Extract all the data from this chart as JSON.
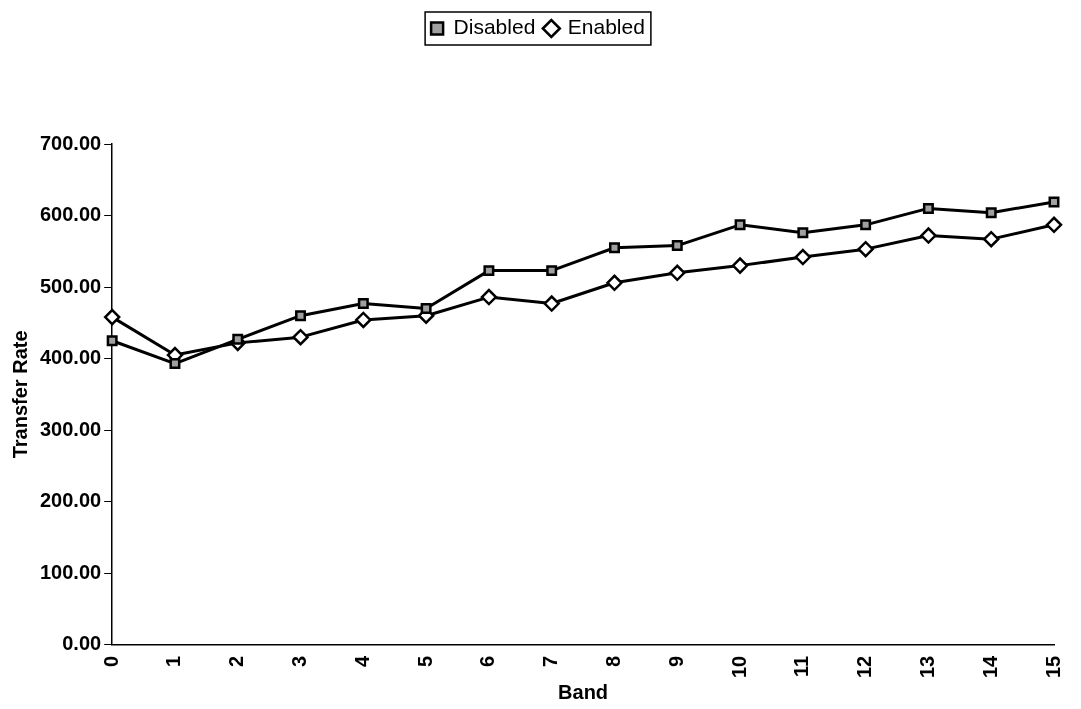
{
  "chart_data": {
    "type": "line",
    "xlabel": "Band",
    "ylabel": "Transfer Rate",
    "categories": [
      "0",
      "1",
      "2",
      "3",
      "4",
      "5",
      "6",
      "7",
      "8",
      "9",
      "10",
      "11",
      "12",
      "13",
      "14",
      "15"
    ],
    "series": [
      {
        "name": "Disabled",
        "color": "#000000",
        "marker": "square",
        "values": [
          425,
          393,
          427,
          460,
          477,
          470,
          523,
          523,
          555,
          558,
          587,
          576,
          587,
          610,
          604,
          619
        ]
      },
      {
        "name": "Enabled",
        "color": "#000000",
        "marker": "diamond",
        "values": [
          458,
          405,
          422,
          430,
          454,
          460,
          486,
          477,
          506,
          520,
          530,
          542,
          553,
          572,
          567,
          587
        ]
      }
    ],
    "ylim": [
      0,
      700
    ],
    "yticks": [
      {
        "value": 0,
        "label": "0.00"
      },
      {
        "value": 100,
        "label": "100.00"
      },
      {
        "value": 200,
        "label": "200.00"
      },
      {
        "value": 300,
        "label": "300.00"
      },
      {
        "value": 400,
        "label": "400.00"
      },
      {
        "value": 500,
        "label": "500.00"
      },
      {
        "value": 600,
        "label": "600.00"
      },
      {
        "value": 700,
        "label": "700.00"
      }
    ],
    "grid": false,
    "legend": "top",
    "line_style": "solid"
  }
}
